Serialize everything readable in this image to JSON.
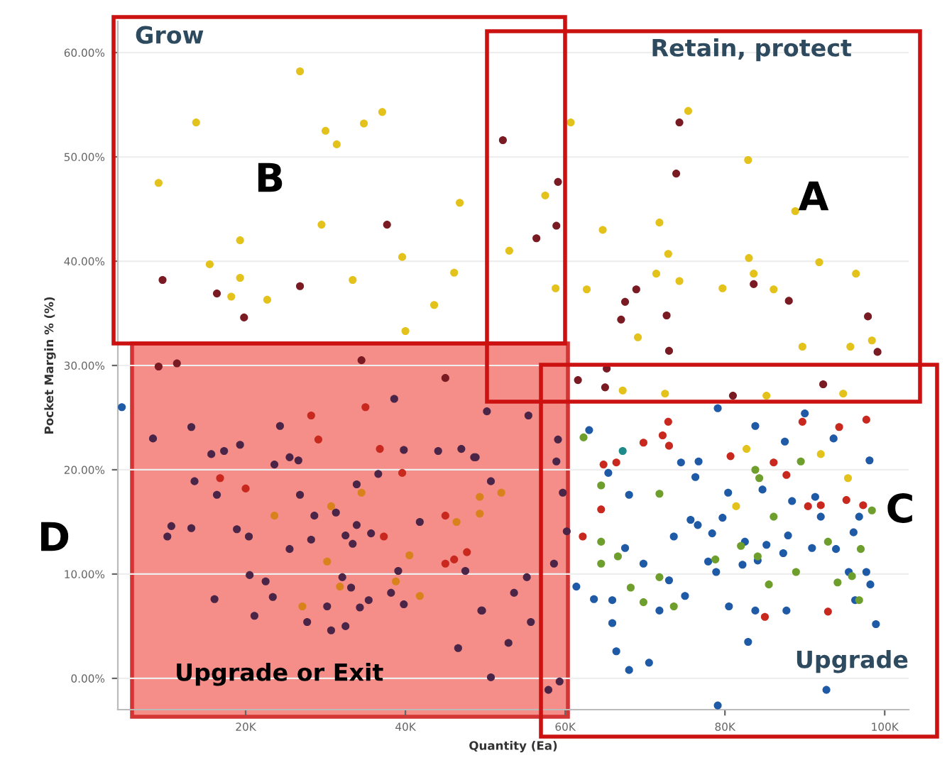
{
  "chart_data": {
    "type": "scatter",
    "xlabel": "Quantity (Ea)",
    "ylabel": "Pocket Margin % (%)",
    "xlim": [
      4,
      103
    ],
    "ylim": [
      -3,
      63
    ],
    "xticks": [
      {
        "value": 20,
        "label": "20K"
      },
      {
        "value": 40,
        "label": "40K"
      },
      {
        "value": 60,
        "label": "60K"
      },
      {
        "value": 80,
        "label": "80K"
      },
      {
        "value": 100,
        "label": "100K"
      }
    ],
    "yticks": [
      {
        "value": 0,
        "label": "0.00%"
      },
      {
        "value": 10,
        "label": "10.00%"
      },
      {
        "value": 20,
        "label": "20.00%"
      },
      {
        "value": 30,
        "label": "30.00%"
      },
      {
        "value": 40,
        "label": "40.00%"
      },
      {
        "value": 50,
        "label": "50.00%"
      },
      {
        "value": 60,
        "label": "60.00%"
      }
    ],
    "grid": "y",
    "legend": false,
    "marker": "circle",
    "annotations": [
      "Grow",
      "Retain, protect",
      "B",
      "A",
      "D",
      "C",
      "Upgrade or Exit",
      "Upgrade"
    ],
    "series": [
      {
        "color": "#e3c21c",
        "x": [
          26.8,
          13.8,
          30.0,
          34.8,
          37.1,
          31.4,
          9.1,
          46.8,
          29.5,
          19.3,
          15.5,
          39.6,
          46.1,
          33.4,
          19.3,
          18.2,
          22.7,
          43.6,
          40.0,
          75.4,
          60.7,
          82.9,
          88.8,
          53.0,
          64.7,
          71.8,
          72.9,
          83.0,
          83.6,
          91.8,
          96.4,
          57.5,
          58.8,
          62.7,
          71.4,
          74.3,
          79.7,
          86.1,
          69.1,
          89.7,
          95.7,
          98.4,
          95.4,
          92.0,
          82.7,
          81.4,
          67.2,
          72.5,
          85.2,
          94.8
        ],
        "values": [
          58.2,
          53.3,
          52.5,
          53.2,
          54.3,
          51.2,
          47.5,
          45.6,
          43.5,
          42.0,
          39.7,
          40.4,
          38.9,
          38.2,
          38.4,
          36.6,
          36.3,
          35.8,
          33.3,
          54.4,
          53.3,
          49.7,
          44.8,
          41.0,
          43.0,
          43.7,
          40.7,
          40.3,
          38.8,
          39.9,
          38.8,
          46.3,
          37.4,
          37.3,
          38.8,
          38.1,
          37.4,
          37.3,
          32.7,
          31.8,
          31.8,
          32.4,
          19.2,
          21.5,
          22.0,
          16.5,
          27.6,
          27.3,
          27.1,
          27.3
        ]
      },
      {
        "color": "#7a1a22",
        "x": [
          37.7,
          9.6,
          16.4,
          26.8,
          19.8,
          52.2,
          74.3,
          73.9,
          59.1,
          58.9,
          56.4,
          68.9,
          67.5,
          67.0,
          72.7,
          83.6,
          88.0,
          97.9,
          99.1,
          73.0,
          9.1,
          11.4,
          34.5,
          45.0,
          65.2,
          65.0,
          81.0,
          92.3,
          61.6
        ],
        "values": [
          43.5,
          38.2,
          36.9,
          37.6,
          34.6,
          51.6,
          53.3,
          48.4,
          47.6,
          43.4,
          42.2,
          37.3,
          36.1,
          34.4,
          34.8,
          37.8,
          36.2,
          34.7,
          31.3,
          31.4,
          29.9,
          30.2,
          30.5,
          28.8,
          29.7,
          27.9,
          27.1,
          28.2,
          28.6
        ]
      },
      {
        "color": "#4b2548",
        "x": [
          38.6,
          8.4,
          13.2,
          24.3,
          19.3,
          15.7,
          17.3,
          23.6,
          25.5,
          26.6,
          39.8,
          44.1,
          47.0,
          48.6,
          16.4,
          33.9,
          36.6,
          26.8,
          10.7,
          13.2,
          10.2,
          18.9,
          20.4,
          25.5,
          28.2,
          32.5,
          33.9,
          33.4,
          35.7,
          41.8,
          47.5,
          39.1,
          20.5,
          22.5,
          23.4,
          16.1,
          21.1,
          27.7,
          30.2,
          30.7,
          32.5,
          32.1,
          33.2,
          34.3,
          35.4,
          38.2,
          39.8,
          49.5,
          46.6,
          50.2,
          55.4,
          48.8,
          50.7,
          59.1,
          58.9,
          59.7,
          60.2,
          58.6,
          55.2,
          53.6,
          55.7,
          49.6,
          52.9,
          50.7,
          59.3,
          57.9,
          13.6,
          31.3,
          28.6
        ],
        "values": [
          26.8,
          23.0,
          24.1,
          24.2,
          22.4,
          21.5,
          21.8,
          20.5,
          21.2,
          20.9,
          21.9,
          21.8,
          22.0,
          21.2,
          17.6,
          18.6,
          19.6,
          17.6,
          14.6,
          14.4,
          13.6,
          14.3,
          13.6,
          12.4,
          13.3,
          13.7,
          14.7,
          12.9,
          13.9,
          15.0,
          10.3,
          10.3,
          9.9,
          9.3,
          7.8,
          7.6,
          6.0,
          5.4,
          6.9,
          4.6,
          5.0,
          9.7,
          8.7,
          6.8,
          7.5,
          8.2,
          7.1,
          6.5,
          2.9,
          25.6,
          25.2,
          21.2,
          18.9,
          22.9,
          20.8,
          17.8,
          14.1,
          11.0,
          9.7,
          8.2,
          5.4,
          6.5,
          3.4,
          0.1,
          -0.3,
          -1.1,
          18.9,
          15.9,
          15.6
        ]
      },
      {
        "color": "#c8281e",
        "x": [
          35.0,
          28.2,
          29.1,
          36.8,
          16.8,
          20.0,
          39.6,
          37.3,
          45.0,
          45.0,
          46.1,
          47.7,
          72.9,
          72.2,
          73.0,
          69.8,
          64.8,
          66.4,
          64.5,
          62.2,
          80.7,
          86.1,
          87.7,
          89.7,
          94.3,
          97.7,
          90.4,
          92.0,
          95.2,
          97.3,
          92.9,
          85.0
        ],
        "values": [
          26.0,
          25.2,
          22.9,
          22.0,
          19.2,
          18.2,
          19.7,
          13.6,
          15.6,
          11.0,
          11.4,
          12.1,
          24.6,
          23.3,
          22.3,
          22.6,
          20.5,
          20.7,
          16.2,
          13.6,
          21.3,
          20.7,
          19.5,
          24.6,
          24.1,
          24.8,
          16.5,
          16.6,
          17.1,
          16.6,
          6.4,
          5.9
        ]
      },
      {
        "color": "#d9821c",
        "x": [
          34.5,
          23.6,
          30.7,
          46.4,
          30.2,
          40.5,
          27.1,
          31.8,
          38.8,
          41.8,
          49.3,
          49.3,
          52.0
        ],
        "values": [
          17.8,
          15.6,
          16.5,
          15.0,
          11.2,
          11.8,
          6.9,
          8.8,
          9.3,
          7.9,
          17.4,
          15.8,
          17.8
        ]
      },
      {
        "color": "#1f5aa6",
        "x": [
          4.5,
          63.0,
          65.4,
          68.0,
          74.5,
          76.7,
          76.3,
          79.1,
          83.8,
          87.5,
          93.6,
          90.0,
          80.4,
          84.7,
          88.4,
          91.3,
          92.0,
          98.1,
          96.8,
          75.7,
          76.6,
          73.6,
          78.4,
          79.7,
          82.5,
          85.2,
          87.9,
          90.9,
          93.9,
          96.1,
          67.5,
          69.8,
          77.9,
          78.9,
          82.2,
          84.1,
          87.3,
          95.5,
          97.7,
          61.4,
          63.6,
          65.9,
          71.8,
          73.0,
          75.0,
          80.5,
          83.8,
          87.7,
          96.3,
          98.2,
          65.9,
          98.9,
          82.9,
          66.4,
          68.0,
          70.5,
          92.7,
          79.1
        ],
        "values": [
          26.0,
          23.8,
          19.7,
          17.6,
          20.7,
          20.8,
          19.3,
          25.9,
          24.2,
          22.7,
          23.0,
          25.4,
          17.8,
          18.1,
          17.0,
          17.4,
          15.5,
          20.9,
          15.5,
          15.2,
          14.7,
          13.6,
          13.9,
          15.4,
          13.1,
          12.8,
          13.7,
          12.5,
          12.4,
          14.0,
          12.5,
          11.0,
          11.2,
          10.2,
          10.9,
          11.3,
          12.0,
          10.2,
          10.2,
          8.8,
          7.6,
          7.5,
          6.5,
          9.4,
          7.9,
          6.9,
          6.5,
          6.5,
          7.5,
          9.0,
          5.3,
          5.2,
          3.5,
          2.6,
          0.8,
          1.5,
          -1.1,
          -2.6
        ]
      },
      {
        "color": "#6e9e2c",
        "x": [
          64.5,
          71.8,
          64.5,
          66.6,
          64.5,
          71.8,
          68.2,
          69.8,
          73.6,
          83.8,
          84.3,
          86.1,
          82.0,
          84.1,
          88.9,
          85.5,
          92.9,
          94.1,
          95.9,
          97.0,
          96.8,
          98.4,
          62.3,
          89.5,
          78.8
        ],
        "values": [
          18.5,
          17.7,
          13.1,
          11.7,
          11.0,
          9.7,
          8.7,
          7.3,
          6.9,
          20.0,
          19.2,
          15.5,
          12.7,
          11.7,
          10.2,
          9.0,
          13.1,
          9.2,
          9.8,
          12.4,
          7.5,
          16.1,
          23.1,
          20.8,
          11.4
        ]
      },
      {
        "color": "#1f8a8a",
        "x": [
          67.2
        ],
        "values": [
          21.8
        ]
      }
    ]
  }
}
